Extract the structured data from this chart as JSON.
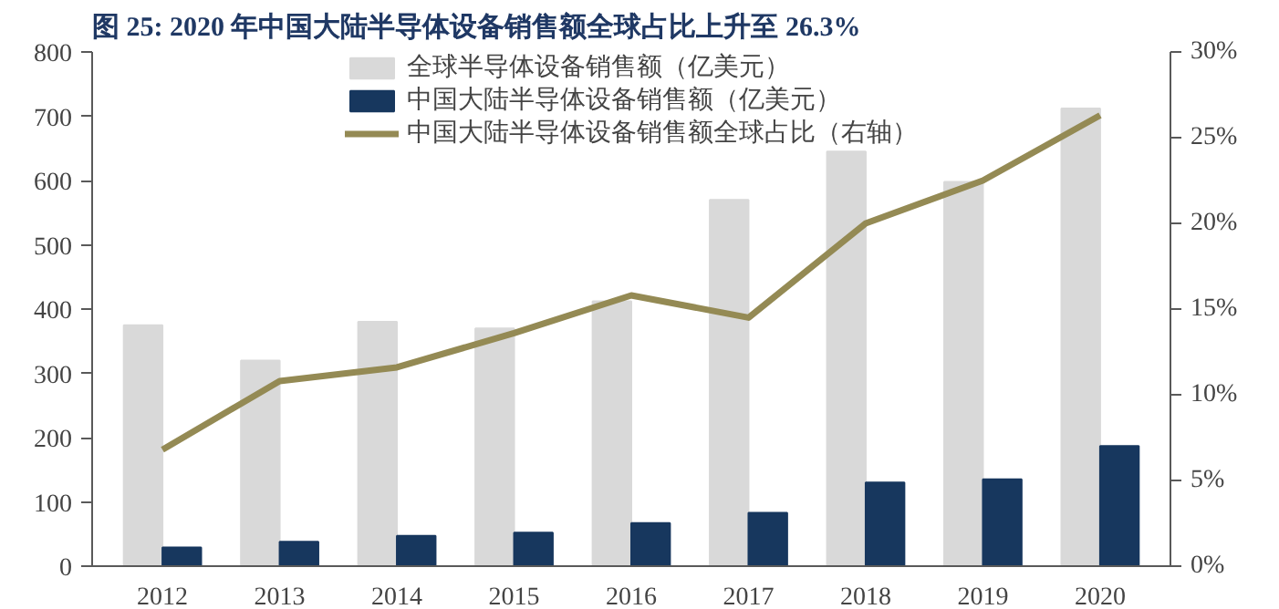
{
  "chart_data": {
    "type": "bar",
    "title": "图 25:  2020 年中国大陆半导体设备销售额全球占比上升至 26.3%",
    "categories": [
      "2012",
      "2013",
      "2014",
      "2015",
      "2016",
      "2017",
      "2018",
      "2019",
      "2020"
    ],
    "series": [
      {
        "name": "全球半导体设备销售额（亿美元）",
        "color": "#d9d9d9",
        "values": [
          375,
          320,
          380,
          370,
          412,
          570,
          645,
          598,
          712
        ]
      },
      {
        "name": "中国大陆半导体设备销售额（亿美元）",
        "color": "#17375e",
        "values": [
          29,
          38,
          47,
          52,
          67,
          83,
          130,
          135,
          187
        ]
      },
      {
        "name": "中国大陆半导体设备销售额全球占比（右轴）",
        "type": "line",
        "axis": "y2",
        "color": "#948a54",
        "values": [
          6.8,
          10.8,
          11.6,
          13.6,
          15.8,
          14.5,
          20.0,
          22.5,
          26.3
        ]
      }
    ],
    "ylim": [
      0,
      800
    ],
    "yticks": [
      0,
      100,
      200,
      300,
      400,
      500,
      600,
      700,
      800
    ],
    "y2lim": [
      0,
      30
    ],
    "y2ticks": [
      {
        "value": 0,
        "label": "0%"
      },
      {
        "value": 5,
        "label": "5%"
      },
      {
        "value": 10,
        "label": "10%"
      },
      {
        "value": 15,
        "label": "15%"
      },
      {
        "value": 20,
        "label": "20%"
      },
      {
        "value": 25,
        "label": "25%"
      },
      {
        "value": 30,
        "label": "30%"
      }
    ],
    "grid": false,
    "legend": "top",
    "marker": "none",
    "line_style": "solid"
  }
}
